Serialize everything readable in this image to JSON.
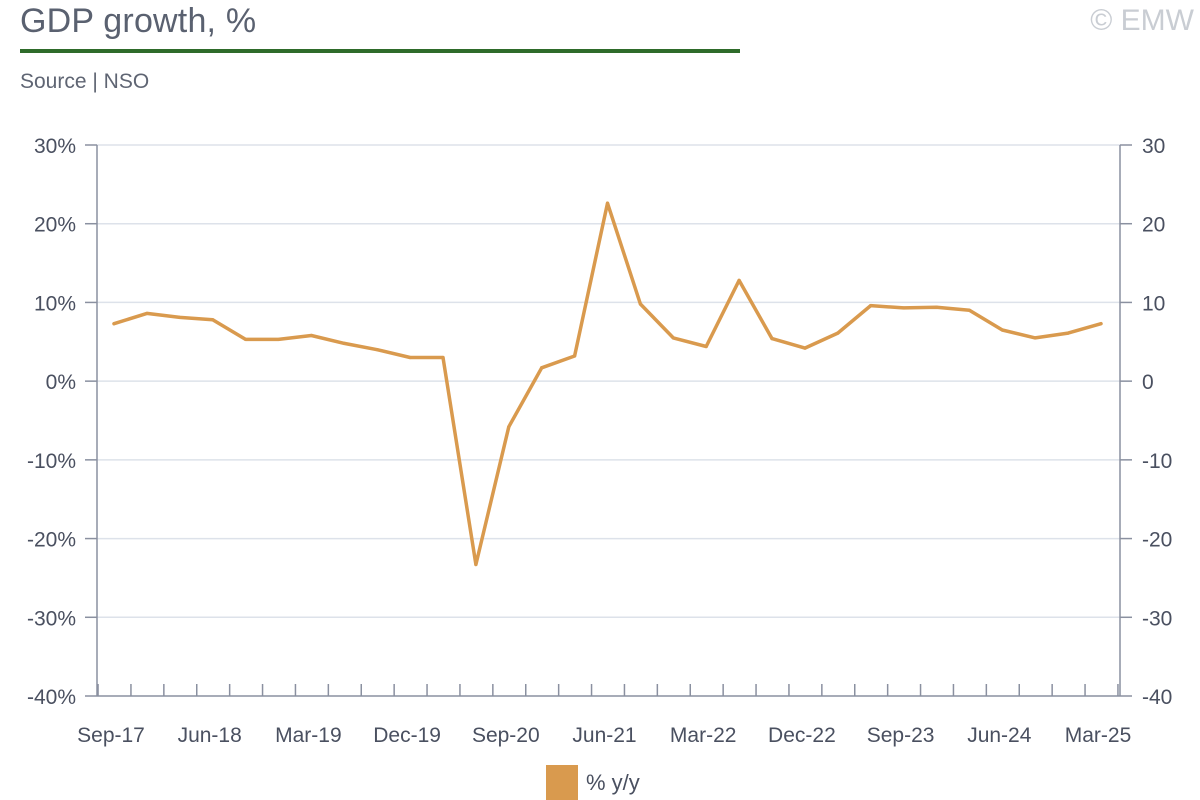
{
  "header": {
    "title": "GDP growth, %",
    "source": "Source | NSO",
    "watermark": "© EMW"
  },
  "colors": {
    "title_rule": "#2e6b2a",
    "series": "#d99a4e",
    "axis": "#8a90a0",
    "grid": "#dde2ea",
    "tick_text": "#4a5060"
  },
  "chart_data": {
    "type": "line",
    "title": "GDP growth, %",
    "subtitle": "Source | NSO",
    "x": [
      "Sep-17",
      "Dec-17",
      "Mar-18",
      "Jun-18",
      "Sep-18",
      "Dec-18",
      "Mar-19",
      "Jun-19",
      "Sep-19",
      "Dec-19",
      "Mar-20",
      "Jun-20",
      "Sep-20",
      "Dec-20",
      "Mar-21",
      "Jun-21",
      "Sep-21",
      "Dec-21",
      "Mar-22",
      "Jun-22",
      "Sep-22",
      "Dec-22",
      "Mar-23",
      "Jun-23",
      "Sep-23",
      "Dec-23",
      "Mar-24",
      "Jun-24",
      "Sep-24",
      "Dec-24",
      "Mar-25"
    ],
    "x_tick_labels": [
      "Sep-17",
      "Jun-18",
      "Mar-19",
      "Dec-19",
      "Sep-20",
      "Jun-21",
      "Mar-22",
      "Dec-22",
      "Sep-23",
      "Jun-24",
      "Mar-25"
    ],
    "series": [
      {
        "name": "% y/y",
        "values": [
          7.3,
          8.6,
          8.1,
          7.8,
          5.3,
          5.3,
          5.8,
          4.8,
          4.0,
          3.0,
          3.0,
          -23.3,
          -5.8,
          1.7,
          3.2,
          22.6,
          9.8,
          5.5,
          4.4,
          12.8,
          5.4,
          4.2,
          6.1,
          9.6,
          9.3,
          9.4,
          9.0,
          6.5,
          5.5,
          6.1,
          7.3
        ]
      }
    ],
    "ylim": [
      -40,
      30
    ],
    "y_ticks": [
      30,
      20,
      10,
      0,
      -10,
      -20,
      -30,
      -40
    ],
    "y_tick_labels_left": [
      "30%",
      "20%",
      "10%",
      "0%",
      "-10%",
      "-20%",
      "-30%",
      "-40%"
    ],
    "y_tick_labels_right": [
      "30",
      "20",
      "10",
      "0",
      "-10",
      "-20",
      "-30",
      "-40"
    ],
    "grid": true,
    "legend": "bottom-center"
  },
  "legend": {
    "label": "% y/y"
  }
}
